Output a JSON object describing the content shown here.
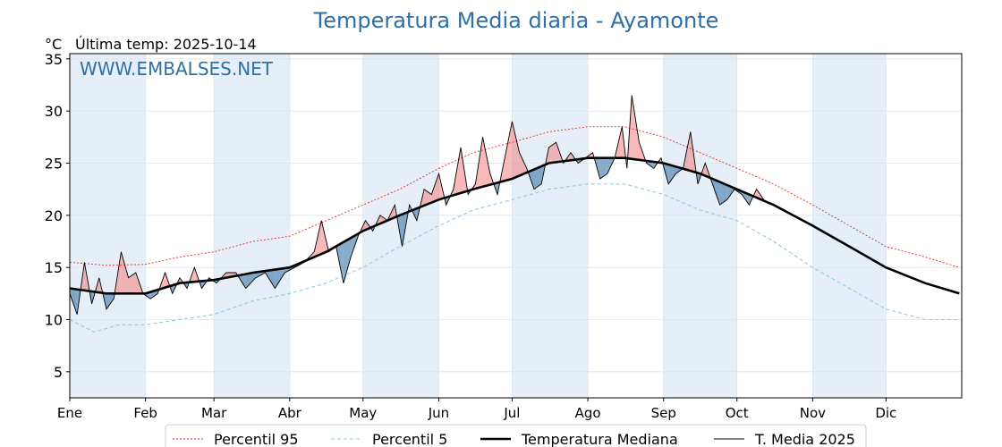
{
  "chart_data": {
    "type": "line",
    "title": "Temperatura Media diaria - Ayamonte",
    "unit_label": "°C",
    "last_temp_label": "Última temp: 2025-10-14",
    "watermark": "WWW.EMBALSES.NET",
    "ylim": [
      2.5,
      35.5
    ],
    "y_ticks": [
      5,
      10,
      15,
      20,
      25,
      30,
      35
    ],
    "x_ticks": [
      {
        "label": "Ene",
        "day": 0
      },
      {
        "label": "Feb",
        "day": 31
      },
      {
        "label": "Mar",
        "day": 59
      },
      {
        "label": "Abr",
        "day": 90
      },
      {
        "label": "May",
        "day": 120
      },
      {
        "label": "Jun",
        "day": 151
      },
      {
        "label": "Jul",
        "day": 181
      },
      {
        "label": "Ago",
        "day": 212
      },
      {
        "label": "Sep",
        "day": 243
      },
      {
        "label": "Oct",
        "day": 273
      },
      {
        "label": "Nov",
        "day": 304
      },
      {
        "label": "Dic",
        "day": 334
      }
    ],
    "xlim": [
      0,
      365
    ],
    "grid": true,
    "legend_placement": "bottom",
    "colors": {
      "p95": "#e8281e",
      "p5": "#8ecbe0",
      "median": "#000000",
      "current": "#000000",
      "above": "#f08080",
      "below": "#4a7fad",
      "band": "#e6eff8",
      "title": "#2e6fa7"
    },
    "series": [
      {
        "name": "Percentil 95",
        "style": "dotted",
        "points": [
          [
            0,
            15.5
          ],
          [
            15,
            15.2
          ],
          [
            31,
            15.3
          ],
          [
            45,
            16.0
          ],
          [
            59,
            16.5
          ],
          [
            75,
            17.5
          ],
          [
            90,
            18.0
          ],
          [
            105,
            19.5
          ],
          [
            120,
            21.0
          ],
          [
            135,
            22.5
          ],
          [
            151,
            24.5
          ],
          [
            165,
            26.0
          ],
          [
            181,
            27.0
          ],
          [
            196,
            28.0
          ],
          [
            212,
            28.5
          ],
          [
            227,
            28.5
          ],
          [
            243,
            27.5
          ],
          [
            258,
            26.0
          ],
          [
            273,
            24.5
          ],
          [
            288,
            23.0
          ],
          [
            304,
            21.0
          ],
          [
            319,
            19.0
          ],
          [
            334,
            17.0
          ],
          [
            350,
            16.0
          ],
          [
            364,
            15.0
          ]
        ]
      },
      {
        "name": "Percentil 5",
        "style": "dashed",
        "points": [
          [
            0,
            10.0
          ],
          [
            10,
            8.8
          ],
          [
            20,
            9.5
          ],
          [
            31,
            9.5
          ],
          [
            45,
            10.0
          ],
          [
            59,
            10.5
          ],
          [
            75,
            11.8
          ],
          [
            90,
            12.5
          ],
          [
            105,
            13.5
          ],
          [
            120,
            15.0
          ],
          [
            135,
            17.0
          ],
          [
            151,
            19.0
          ],
          [
            165,
            20.5
          ],
          [
            181,
            21.5
          ],
          [
            196,
            22.5
          ],
          [
            212,
            23.0
          ],
          [
            227,
            23.0
          ],
          [
            243,
            22.0
          ],
          [
            258,
            20.5
          ],
          [
            273,
            19.5
          ],
          [
            288,
            17.5
          ],
          [
            304,
            15.0
          ],
          [
            319,
            13.0
          ],
          [
            334,
            11.0
          ],
          [
            350,
            10.0
          ],
          [
            364,
            10.0
          ]
        ]
      },
      {
        "name": "Temperatura Mediana",
        "style": "thick",
        "points": [
          [
            0,
            13.0
          ],
          [
            15,
            12.5
          ],
          [
            31,
            12.5
          ],
          [
            45,
            13.5
          ],
          [
            59,
            13.8
          ],
          [
            75,
            14.5
          ],
          [
            90,
            15.0
          ],
          [
            105,
            16.5
          ],
          [
            120,
            18.5
          ],
          [
            135,
            20.0
          ],
          [
            151,
            21.5
          ],
          [
            165,
            22.5
          ],
          [
            181,
            23.5
          ],
          [
            196,
            25.0
          ],
          [
            212,
            25.5
          ],
          [
            227,
            25.5
          ],
          [
            243,
            25.0
          ],
          [
            258,
            24.0
          ],
          [
            273,
            22.5
          ],
          [
            288,
            21.0
          ],
          [
            304,
            19.0
          ],
          [
            319,
            17.0
          ],
          [
            334,
            15.0
          ],
          [
            350,
            13.5
          ],
          [
            364,
            12.5
          ]
        ]
      },
      {
        "name": "T. Media 2025",
        "style": "thin",
        "points": [
          [
            0,
            12.5
          ],
          [
            3,
            10.5
          ],
          [
            6,
            15.5
          ],
          [
            9,
            11.5
          ],
          [
            12,
            14.0
          ],
          [
            15,
            11.0
          ],
          [
            18,
            12.0
          ],
          [
            21,
            16.5
          ],
          [
            24,
            14.0
          ],
          [
            27,
            14.5
          ],
          [
            30,
            12.5
          ],
          [
            33,
            12.0
          ],
          [
            36,
            12.5
          ],
          [
            39,
            14.5
          ],
          [
            42,
            12.5
          ],
          [
            45,
            14.0
          ],
          [
            48,
            13.0
          ],
          [
            51,
            15.0
          ],
          [
            54,
            13.0
          ],
          [
            57,
            14.0
          ],
          [
            60,
            13.5
          ],
          [
            64,
            14.5
          ],
          [
            68,
            14.5
          ],
          [
            72,
            13.0
          ],
          [
            76,
            14.0
          ],
          [
            80,
            14.5
          ],
          [
            84,
            13.0
          ],
          [
            88,
            14.5
          ],
          [
            92,
            15.0
          ],
          [
            96,
            15.5
          ],
          [
            100,
            16.5
          ],
          [
            103,
            19.5
          ],
          [
            106,
            16.5
          ],
          [
            109,
            17.0
          ],
          [
            112,
            13.5
          ],
          [
            115,
            16.0
          ],
          [
            118,
            18.0
          ],
          [
            121,
            19.5
          ],
          [
            124,
            18.5
          ],
          [
            127,
            20.0
          ],
          [
            130,
            19.5
          ],
          [
            133,
            21.0
          ],
          [
            136,
            17.0
          ],
          [
            139,
            21.0
          ],
          [
            142,
            19.5
          ],
          [
            145,
            22.5
          ],
          [
            148,
            22.0
          ],
          [
            151,
            24.0
          ],
          [
            154,
            21.0
          ],
          [
            157,
            22.5
          ],
          [
            160,
            26.5
          ],
          [
            163,
            22.0
          ],
          [
            166,
            23.0
          ],
          [
            169,
            27.5
          ],
          [
            172,
            24.0
          ],
          [
            175,
            22.0
          ],
          [
            178,
            25.5
          ],
          [
            181,
            29.0
          ],
          [
            184,
            26.0
          ],
          [
            187,
            24.5
          ],
          [
            190,
            22.5
          ],
          [
            193,
            23.0
          ],
          [
            196,
            26.5
          ],
          [
            199,
            27.0
          ],
          [
            202,
            25.0
          ],
          [
            205,
            26.0
          ],
          [
            208,
            25.0
          ],
          [
            211,
            25.5
          ],
          [
            214,
            26.0
          ],
          [
            217,
            23.5
          ],
          [
            220,
            24.0
          ],
          [
            223,
            25.5
          ],
          [
            226,
            28.5
          ],
          [
            228,
            24.5
          ],
          [
            230,
            31.5
          ],
          [
            233,
            27.0
          ],
          [
            236,
            25.0
          ],
          [
            239,
            24.5
          ],
          [
            242,
            25.5
          ],
          [
            245,
            23.0
          ],
          [
            248,
            24.0
          ],
          [
            251,
            24.5
          ],
          [
            254,
            28.0
          ],
          [
            257,
            23.0
          ],
          [
            260,
            25.0
          ],
          [
            263,
            23.0
          ],
          [
            266,
            21.0
          ],
          [
            269,
            21.5
          ],
          [
            272,
            22.5
          ],
          [
            275,
            22.0
          ],
          [
            278,
            21.0
          ],
          [
            281,
            22.5
          ],
          [
            284,
            21.5
          ]
        ]
      }
    ],
    "legend": [
      "Percentil 95",
      "Percentil 5",
      "Temperatura Mediana",
      "T. Media 2025"
    ]
  }
}
